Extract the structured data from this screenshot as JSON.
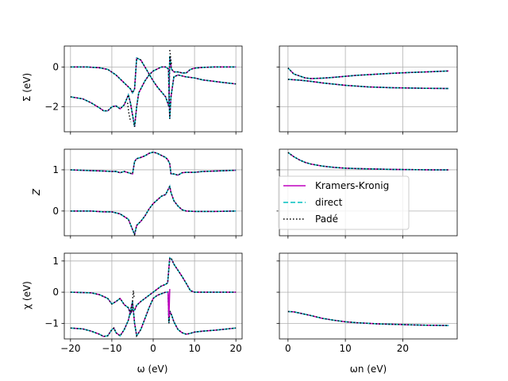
{
  "chart_data": {
    "type": "line",
    "series_styles": {
      "kk": {
        "name": "Kramers-Kronig",
        "color": "#bf00bf",
        "dash": "solid"
      },
      "direct": {
        "name": "direct",
        "color": "#00bfbf",
        "dash": "dashed"
      },
      "pade": {
        "name": "Padé",
        "color": "#000000",
        "dash": "dotted"
      }
    },
    "legend": {
      "placement": "middle-right panel, lower-left",
      "entries": [
        "Kramers-Kronig",
        "direct",
        "Padé"
      ]
    },
    "columns": {
      "left": {
        "xlabel": "ω (eV)",
        "xlim": [
          -21.5,
          21.5
        ],
        "xticks": [
          -20,
          -10,
          0,
          10,
          20
        ],
        "xtick_labels": [
          "−20",
          "−10",
          "0",
          "10",
          "20"
        ]
      },
      "right": {
        "xlabel": "ωn (eV)",
        "xlim": [
          -1.5,
          29.5
        ],
        "xticks": [
          0,
          10,
          20
        ],
        "xtick_labels": [
          "0",
          "10",
          "20"
        ]
      }
    },
    "rows": [
      {
        "key": "sigma",
        "ylabel": "Σ (eV)",
        "ylim": [
          -3.25,
          1.05
        ],
        "yticks": [
          0,
          -2
        ],
        "ytick_labels": [
          "0",
          "−2"
        ]
      },
      {
        "key": "z",
        "ylabel": "Z",
        "ylim": [
          -0.6,
          1.5
        ],
        "yticks": [
          1,
          0
        ],
        "ytick_labels": [
          "1",
          "0"
        ]
      },
      {
        "key": "chi",
        "ylabel": "χ (eV)",
        "ylim": [
          -1.5,
          1.25
        ],
        "yticks": [
          1,
          0,
          -1
        ],
        "ytick_labels": [
          "1",
          "0",
          "−1"
        ]
      }
    ],
    "panels": {
      "sigma_real": {
        "upper": [
          [
            -20,
            0
          ],
          [
            -16,
            0
          ],
          [
            -13,
            -0.04
          ],
          [
            -11,
            -0.12
          ],
          [
            -9,
            -0.4
          ],
          [
            -7.5,
            -0.7
          ],
          [
            -6.5,
            -0.9
          ],
          [
            -5.5,
            -1.1
          ],
          [
            -5,
            -1.3
          ],
          [
            -4.5,
            -1.1
          ],
          [
            -4,
            0.45
          ],
          [
            -3,
            0.35
          ],
          [
            -2,
            0.0
          ],
          [
            -1,
            -0.35
          ],
          [
            0,
            -0.7
          ],
          [
            1,
            -1.0
          ],
          [
            2,
            -1.25
          ],
          [
            3,
            -1.5
          ],
          [
            3.5,
            -1.8
          ],
          [
            3.8,
            -2.0
          ],
          [
            4,
            0.55
          ],
          [
            4.4,
            -0.1
          ],
          [
            5,
            -0.25
          ],
          [
            6,
            -0.25
          ],
          [
            7,
            -0.3
          ],
          [
            8,
            -0.3
          ],
          [
            9,
            -0.12
          ],
          [
            10,
            -0.06
          ],
          [
            12,
            -0.02
          ],
          [
            15,
            0
          ],
          [
            20,
            0
          ]
        ],
        "lower": [
          [
            -20,
            -1.5
          ],
          [
            -17,
            -1.6
          ],
          [
            -15,
            -1.8
          ],
          [
            -13,
            -2.05
          ],
          [
            -12,
            -2.2
          ],
          [
            -11,
            -2.2
          ],
          [
            -10,
            -2.0
          ],
          [
            -9,
            -1.95
          ],
          [
            -8,
            -2.1
          ],
          [
            -7,
            -1.9
          ],
          [
            -6,
            -1.4
          ],
          [
            -5.5,
            -1.8
          ],
          [
            -5,
            -2.4
          ],
          [
            -4.5,
            -3.0
          ],
          [
            -4,
            -2.0
          ],
          [
            -3.5,
            -1.3
          ],
          [
            -3,
            -1.1
          ],
          [
            -2,
            -0.7
          ],
          [
            -1,
            -0.4
          ],
          [
            0,
            -0.2
          ],
          [
            1,
            -0.1
          ],
          [
            2,
            0
          ],
          [
            3,
            0
          ],
          [
            3.7,
            -0.1
          ],
          [
            4,
            -2.6
          ],
          [
            4.3,
            -1.5
          ],
          [
            5,
            -0.5
          ],
          [
            6,
            -0.4
          ],
          [
            7,
            -0.45
          ],
          [
            8,
            -0.5
          ],
          [
            10,
            -0.55
          ],
          [
            12,
            -0.65
          ],
          [
            14,
            -0.7
          ],
          [
            17,
            -0.78
          ],
          [
            20,
            -0.85
          ]
        ],
        "pade_extra": [
          [
            -6.2,
            -1.8
          ],
          [
            -5.9,
            -2.3
          ],
          [
            -5.6,
            -2.6
          ],
          [
            -5.4,
            -2.75
          ],
          [
            4,
            0.85
          ],
          [
            4.15,
            0.6
          ],
          [
            4.3,
            0.3
          ],
          [
            4.5,
            0.05
          ]
        ]
      },
      "sigma_imag": {
        "upper": [
          [
            0,
            -0.05
          ],
          [
            0.5,
            -0.2
          ],
          [
            1,
            -0.35
          ],
          [
            2,
            -0.45
          ],
          [
            3,
            -0.55
          ],
          [
            4,
            -0.58
          ],
          [
            6,
            -0.56
          ],
          [
            8,
            -0.52
          ],
          [
            10,
            -0.47
          ],
          [
            12,
            -0.42
          ],
          [
            15,
            -0.37
          ],
          [
            18,
            -0.32
          ],
          [
            21,
            -0.28
          ],
          [
            24,
            -0.25
          ],
          [
            28,
            -0.2
          ]
        ],
        "lower": [
          [
            0,
            -0.62
          ],
          [
            2,
            -0.66
          ],
          [
            4,
            -0.72
          ],
          [
            6,
            -0.8
          ],
          [
            8,
            -0.86
          ],
          [
            10,
            -0.92
          ],
          [
            12,
            -0.96
          ],
          [
            14,
            -1.0
          ],
          [
            16,
            -1.02
          ],
          [
            18,
            -1.04
          ],
          [
            20,
            -1.05
          ],
          [
            22,
            -1.06
          ],
          [
            24,
            -1.07
          ],
          [
            26,
            -1.075
          ],
          [
            28,
            -1.08
          ]
        ]
      },
      "z_real": {
        "upper": [
          [
            -20,
            1.0
          ],
          [
            -15,
            0.98
          ],
          [
            -12,
            0.97
          ],
          [
            -10,
            0.96
          ],
          [
            -9,
            0.96
          ],
          [
            -8,
            0.93
          ],
          [
            -7,
            0.96
          ],
          [
            -6,
            0.93
          ],
          [
            -5,
            0.9
          ],
          [
            -4.5,
            1.2
          ],
          [
            -4,
            1.27
          ],
          [
            -3,
            1.3
          ],
          [
            -2,
            1.34
          ],
          [
            -1,
            1.4
          ],
          [
            0,
            1.43
          ],
          [
            1,
            1.4
          ],
          [
            2,
            1.35
          ],
          [
            3,
            1.3
          ],
          [
            3.5,
            1.25
          ],
          [
            4,
            1.15
          ],
          [
            4.3,
            0.9
          ],
          [
            5,
            0.9
          ],
          [
            6,
            0.87
          ],
          [
            7,
            0.93
          ],
          [
            8,
            0.94
          ],
          [
            10,
            0.94
          ],
          [
            12,
            0.96
          ],
          [
            15,
            0.97
          ],
          [
            20,
            0.99
          ]
        ],
        "lower": [
          [
            -20,
            0.0
          ],
          [
            -15,
            0.0
          ],
          [
            -12,
            -0.02
          ],
          [
            -10,
            -0.02
          ],
          [
            -8,
            -0.07
          ],
          [
            -6,
            -0.2
          ],
          [
            -5,
            -0.45
          ],
          [
            -4.5,
            -0.57
          ],
          [
            -4,
            -0.35
          ],
          [
            -3,
            -0.25
          ],
          [
            -2,
            -0.12
          ],
          [
            -1,
            0.05
          ],
          [
            0,
            0.18
          ],
          [
            1,
            0.27
          ],
          [
            2,
            0.36
          ],
          [
            3,
            0.4
          ],
          [
            3.5,
            0.5
          ],
          [
            4,
            0.6
          ],
          [
            4.3,
            0.45
          ],
          [
            5,
            0.25
          ],
          [
            6,
            0.12
          ],
          [
            7,
            0.03
          ],
          [
            8,
            0.0
          ],
          [
            10,
            -0.01
          ],
          [
            15,
            -0.01
          ],
          [
            20,
            0.0
          ]
        ]
      },
      "z_imag": {
        "upper": [
          [
            0,
            1.42
          ],
          [
            1,
            1.32
          ],
          [
            2,
            1.24
          ],
          [
            3,
            1.18
          ],
          [
            4,
            1.14
          ],
          [
            6,
            1.09
          ],
          [
            8,
            1.06
          ],
          [
            10,
            1.04
          ],
          [
            12,
            1.03
          ],
          [
            15,
            1.02
          ],
          [
            18,
            1.01
          ],
          [
            22,
            1.005
          ],
          [
            25,
            1.0
          ],
          [
            28,
            1.0
          ]
        ]
      },
      "chi_real": {
        "upper": [
          [
            -20,
            0
          ],
          [
            -15,
            -0.02
          ],
          [
            -13,
            -0.08
          ],
          [
            -11,
            -0.2
          ],
          [
            -10,
            -0.38
          ],
          [
            -9,
            -0.3
          ],
          [
            -8,
            -0.2
          ],
          [
            -7,
            -0.4
          ],
          [
            -6,
            -0.5
          ],
          [
            -5.5,
            -0.7
          ],
          [
            -5,
            -0.55
          ],
          [
            -4.5,
            -0.58
          ],
          [
            -4,
            -0.42
          ],
          [
            -3,
            -0.3
          ],
          [
            -2,
            -0.2
          ],
          [
            -1,
            -0.1
          ],
          [
            0,
            0
          ],
          [
            1,
            0.1
          ],
          [
            2,
            0.2
          ],
          [
            3,
            0.25
          ],
          [
            3.5,
            0.3
          ],
          [
            4,
            1.1
          ],
          [
            4.5,
            1.05
          ],
          [
            5,
            0.9
          ],
          [
            6,
            0.7
          ],
          [
            7,
            0.5
          ],
          [
            8,
            0.28
          ],
          [
            9,
            0.05
          ],
          [
            10,
            0.0
          ],
          [
            12,
            0.0
          ],
          [
            15,
            0.0
          ],
          [
            20,
            0.0
          ]
        ],
        "lower": [
          [
            -20,
            -1.15
          ],
          [
            -17,
            -1.18
          ],
          [
            -15,
            -1.25
          ],
          [
            -13,
            -1.35
          ],
          [
            -12,
            -1.42
          ],
          [
            -11,
            -1.4
          ],
          [
            -10,
            -1.2
          ],
          [
            -9.5,
            -1.15
          ],
          [
            -9,
            -1.3
          ],
          [
            -8,
            -1.4
          ],
          [
            -7,
            -1.2
          ],
          [
            -6,
            -0.9
          ],
          [
            -5,
            -0.3
          ],
          [
            -4.5,
            -1.0
          ],
          [
            -4,
            -1.4
          ],
          [
            -3,
            -1.2
          ],
          [
            -2,
            -0.85
          ],
          [
            -1,
            -0.5
          ],
          [
            0,
            -0.2
          ],
          [
            1,
            -0.1
          ],
          [
            2,
            -0.05
          ],
          [
            3,
            0.0
          ],
          [
            3.6,
            0.0
          ],
          [
            3.8,
            -1.0
          ],
          [
            4,
            -0.6
          ],
          [
            4.5,
            -0.75
          ],
          [
            5,
            -0.95
          ],
          [
            6,
            -1.2
          ],
          [
            7,
            -1.3
          ],
          [
            8,
            -1.35
          ],
          [
            9,
            -1.32
          ],
          [
            10,
            -1.28
          ],
          [
            12,
            -1.25
          ],
          [
            15,
            -1.22
          ],
          [
            20,
            -1.15
          ]
        ],
        "kk_extra": [
          [
            3.6,
            0.0
          ],
          [
            3.7,
            -0.45
          ],
          [
            3.8,
            -0.8
          ],
          [
            3.9,
            -0.4
          ],
          [
            4,
            0.1
          ]
        ],
        "pade_extra": [
          [
            -5.2,
            -0.6
          ],
          [
            -5.0,
            -0.3
          ],
          [
            -4.8,
            0.05
          ],
          [
            -4.6,
            -0.2
          ]
        ]
      },
      "chi_imag": {
        "upper": [
          [
            0,
            -0.62
          ],
          [
            1,
            -0.63
          ],
          [
            2,
            -0.67
          ],
          [
            3,
            -0.71
          ],
          [
            4,
            -0.75
          ],
          [
            6,
            -0.84
          ],
          [
            8,
            -0.9
          ],
          [
            10,
            -0.95
          ],
          [
            12,
            -0.98
          ],
          [
            14,
            -1.0
          ],
          [
            16,
            -1.02
          ],
          [
            18,
            -1.03
          ],
          [
            20,
            -1.04
          ],
          [
            22,
            -1.05
          ],
          [
            24,
            -1.06
          ],
          [
            26,
            -1.065
          ],
          [
            28,
            -1.07
          ]
        ]
      }
    }
  }
}
